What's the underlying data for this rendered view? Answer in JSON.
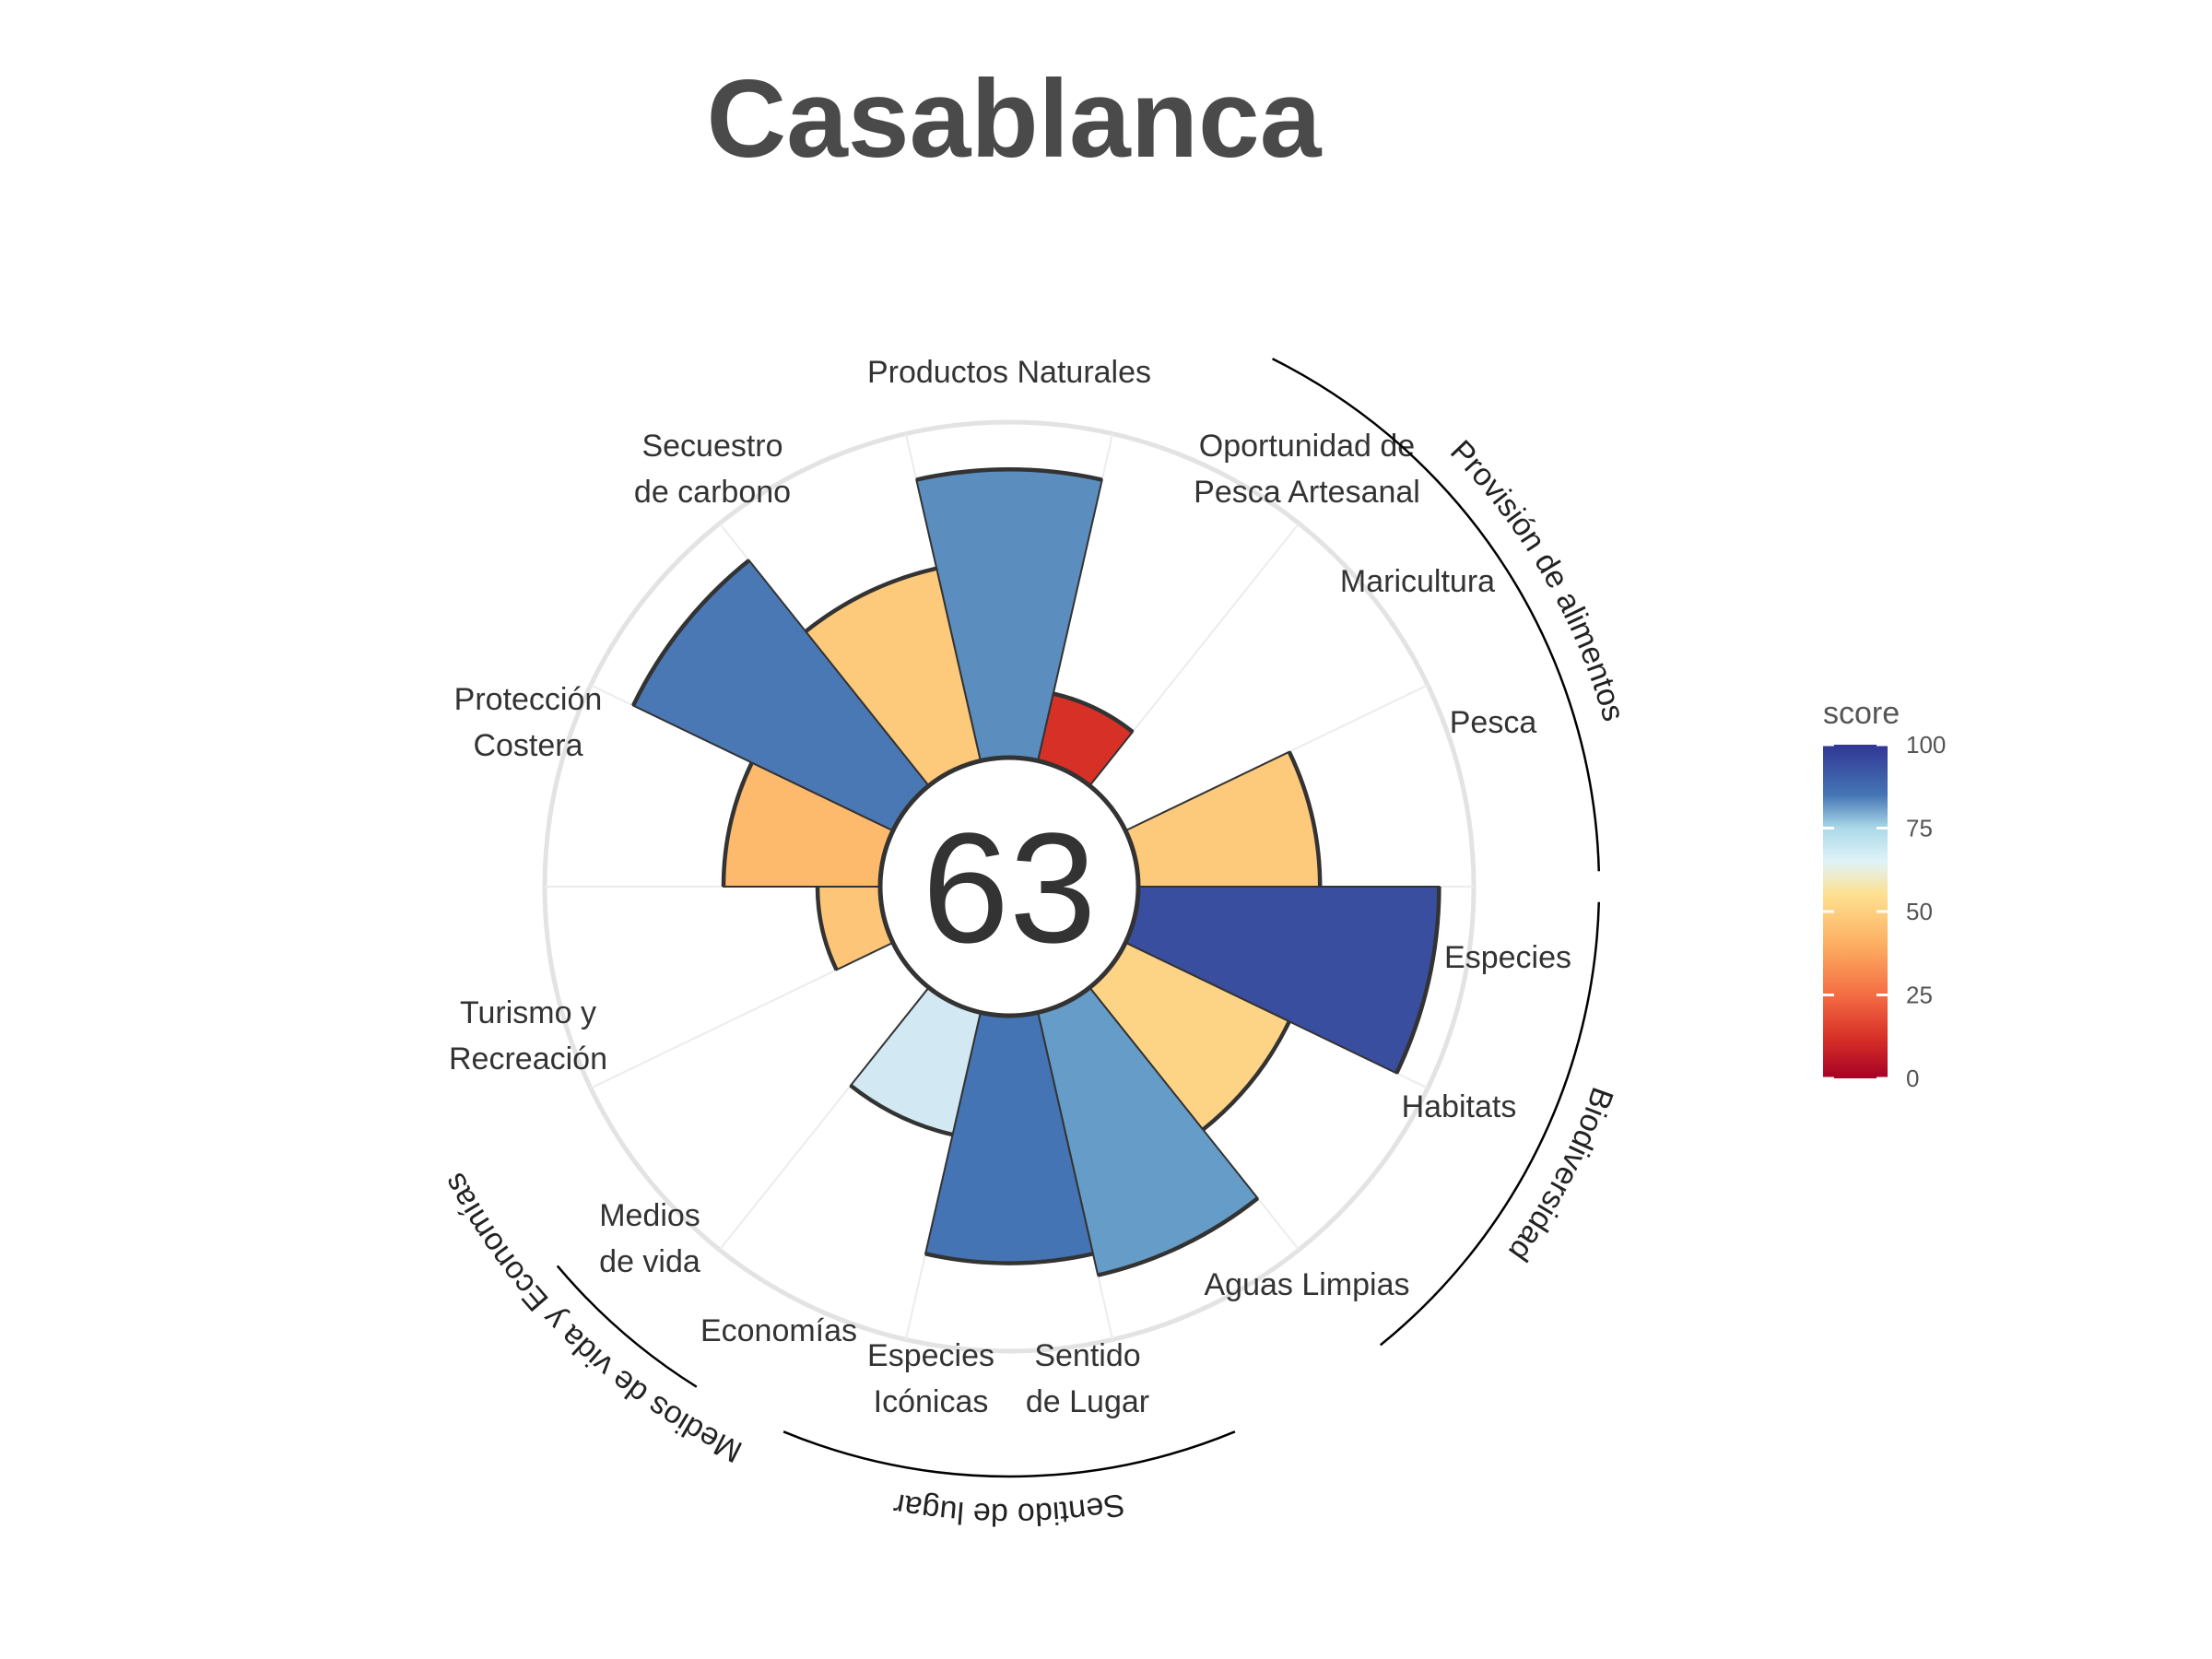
{
  "chart_data": {
    "type": "polar-bar",
    "title": "Casablanca",
    "overall_score": "63",
    "ylim": [
      0,
      100
    ],
    "grid": true,
    "segments": [
      {
        "label": "Productos Naturales",
        "value": 92,
        "color": "#5B8DBE"
      },
      {
        "label": "Oportunidad de Pesca Artesanal",
        "value": 22,
        "color": "#D73027"
      },
      {
        "label": "Maricultura",
        "value": 0,
        "color": "#FFFFFF"
      },
      {
        "label": "Pesca",
        "value": 58,
        "color": "#FDC97A"
      },
      {
        "label": "Especies",
        "value": 96,
        "color": "#3A4EA0"
      },
      {
        "label": "Habitats",
        "value": 58,
        "color": "#FDD385"
      },
      {
        "label": "Aguas Limpias",
        "value": 86,
        "color": "#659DC8"
      },
      {
        "label": "Sentido de Lugar",
        "value": 79,
        "color": "#4574B4"
      },
      {
        "label": "Especies Icónicas",
        "value": 40,
        "color": "#D2E8F3"
      },
      {
        "label": "Economías",
        "value": 0,
        "color": "#FFFFFF"
      },
      {
        "label": "Medios de vida",
        "value": 20,
        "color": "#FDC577"
      },
      {
        "label": "Turismo y Recreación",
        "value": 50,
        "color": "#FDB96C"
      },
      {
        "label": "Protección Costera",
        "value": 92,
        "color": "#4A78B5"
      },
      {
        "label": "Secuestro de carbono",
        "value": 63,
        "color": "#FDC97A"
      }
    ],
    "groups": [
      {
        "label": "Provisión de alimentos"
      },
      {
        "label": "Biodiversidad"
      },
      {
        "label": "Sentido de lugar"
      },
      {
        "label": "Medios de vida y Economías"
      }
    ],
    "legend": {
      "title": "score",
      "ticks": [
        "100",
        "75",
        "50",
        "25",
        "0"
      ],
      "placement": "right"
    }
  }
}
